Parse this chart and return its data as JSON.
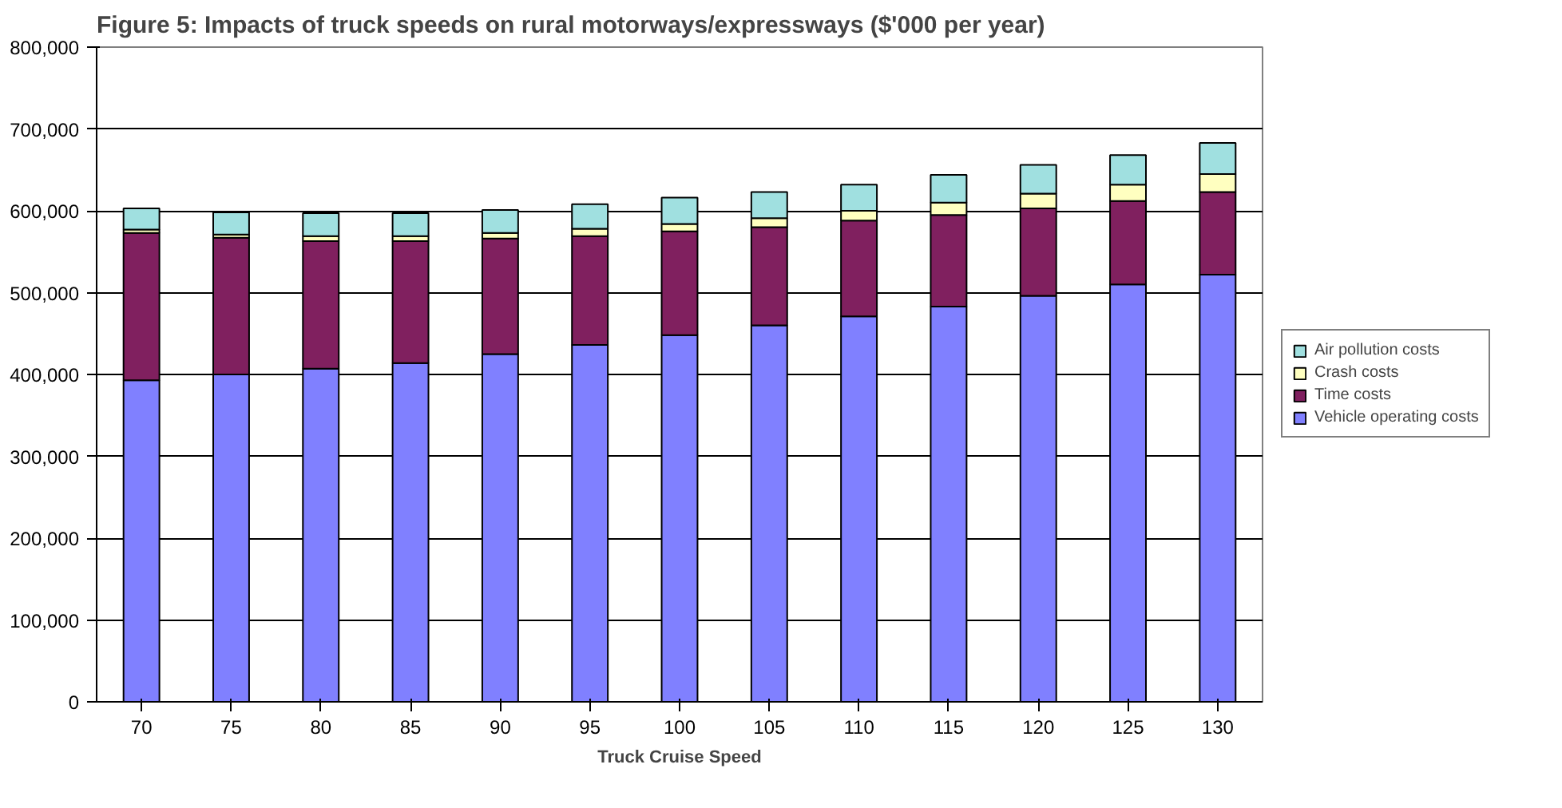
{
  "chart_data": {
    "type": "bar",
    "stacked": true,
    "title": "Figure 5: Impacts of truck speeds on rural motorways/expressways ($'000 per year)",
    "xlabel": "Truck Cruise Speed",
    "categories": [
      "70",
      "75",
      "80",
      "85",
      "90",
      "95",
      "100",
      "105",
      "110",
      "115",
      "120",
      "125",
      "130"
    ],
    "series": [
      {
        "name": "Vehicle operating costs",
        "color": "#8080ff",
        "values": [
          393000,
          400000,
          407000,
          414000,
          425000,
          436000,
          448000,
          460000,
          471000,
          483000,
          496000,
          510000,
          522000
        ]
      },
      {
        "name": "Time costs",
        "color": "#80205f",
        "values": [
          180000,
          167000,
          156000,
          149000,
          141000,
          133000,
          127000,
          120000,
          117000,
          112000,
          107000,
          102000,
          101000
        ]
      },
      {
        "name": "Crash costs",
        "color": "#ffffc0",
        "values": [
          4000,
          4000,
          6000,
          6000,
          7000,
          9000,
          9000,
          11000,
          12000,
          15000,
          18000,
          20000,
          22000
        ]
      },
      {
        "name": "Air pollution costs",
        "color": "#a0e0e0",
        "values": [
          26000,
          27000,
          28000,
          28000,
          28000,
          30000,
          32000,
          32000,
          32000,
          34000,
          35000,
          36000,
          38000
        ]
      }
    ],
    "ylim": [
      0,
      800000
    ],
    "yticks": [
      {
        "value": 0,
        "label": "0"
      },
      {
        "value": 100000,
        "label": "100,000"
      },
      {
        "value": 200000,
        "label": "200,000"
      },
      {
        "value": 300000,
        "label": "300,000"
      },
      {
        "value": 400000,
        "label": "400,000"
      },
      {
        "value": 500000,
        "label": "500,000"
      },
      {
        "value": 600000,
        "label": "600,000"
      },
      {
        "value": 700000,
        "label": "700,000"
      },
      {
        "value": 800000,
        "label": "800,000"
      }
    ],
    "grid": "y",
    "legend": "right"
  }
}
